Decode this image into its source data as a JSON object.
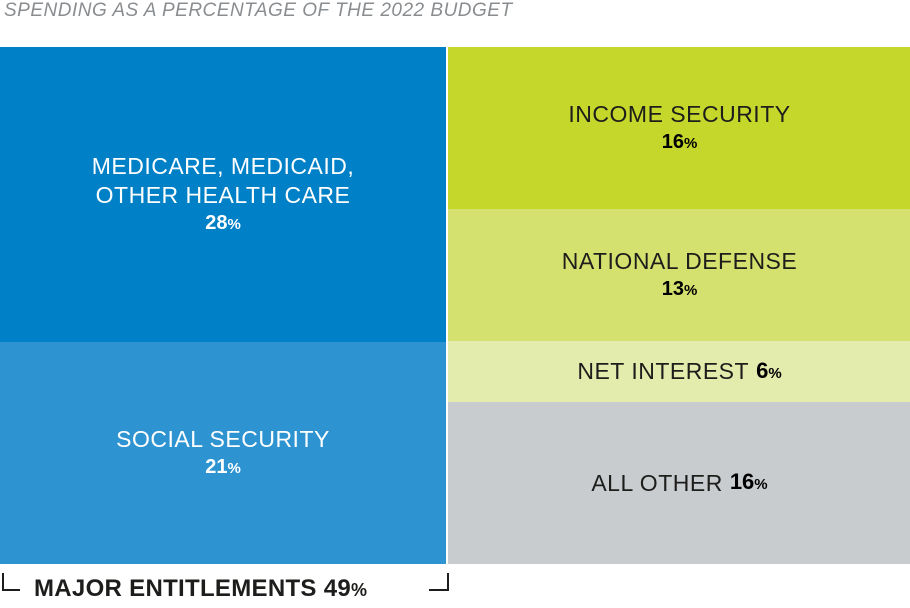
{
  "chart_data": {
    "type": "treemap",
    "subtitle": "SPENDING AS A PERCENTAGE OF THE 2022 BUDGET",
    "units": "%",
    "groups": [
      {
        "name": "MAJOR ENTITLEMENTS",
        "value": 49,
        "items": [
          {
            "label": "MEDICARE, MEDICAID,\nOTHER HEALTH CARE",
            "value": 28,
            "color": "#0080c6"
          },
          {
            "label": "SOCIAL SECURITY",
            "value": 21,
            "color": "#2e93d1"
          }
        ]
      },
      {
        "name": "",
        "items": [
          {
            "label": "INCOME SECURITY",
            "value": 16,
            "color": "#c5d72b"
          },
          {
            "label": "NATIONAL DEFENSE",
            "value": 13,
            "color": "#d5e16f"
          },
          {
            "label": "NET INTEREST",
            "value": 6,
            "color": "#e3ebad"
          },
          {
            "label": "ALL OTHER",
            "value": 16,
            "color": "#c9ccce"
          }
        ]
      }
    ]
  },
  "bracket": {
    "label": "MAJOR ENTITLEMENTS",
    "value": "49",
    "sign": "%"
  }
}
